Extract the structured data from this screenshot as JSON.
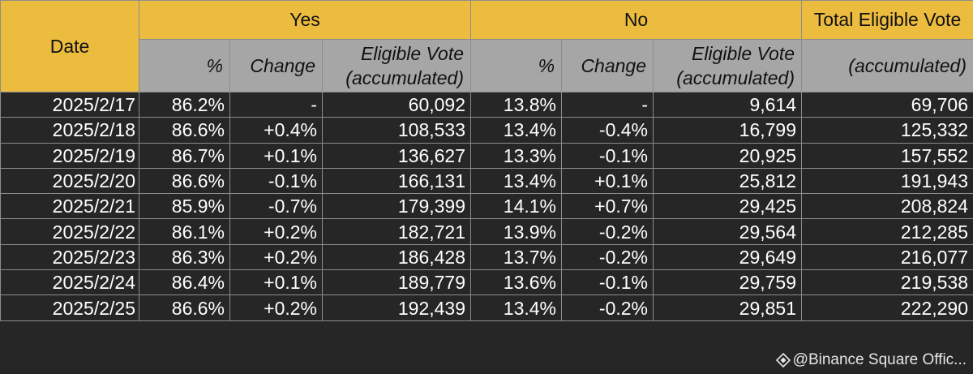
{
  "table": {
    "header": {
      "date": "Date",
      "groups": [
        "Yes",
        "No",
        "Total Eligible Vote"
      ],
      "columns": [
        "%",
        "Change",
        "Eligible Vote\n(accumulated)",
        "%",
        "Change",
        "Eligible Vote\n(accumulated)",
        "(accumulated)"
      ]
    },
    "rows": [
      [
        "2025/2/17",
        "86.2%",
        "-",
        "60,092",
        "13.8%",
        "-",
        "9,614",
        "69,706"
      ],
      [
        "2025/2/18",
        "86.6%",
        "+0.4%",
        "108,533",
        "13.4%",
        "-0.4%",
        "16,799",
        "125,332"
      ],
      [
        "2025/2/19",
        "86.7%",
        "+0.1%",
        "136,627",
        "13.3%",
        "-0.1%",
        "20,925",
        "157,552"
      ],
      [
        "2025/2/20",
        "86.6%",
        "-0.1%",
        "166,131",
        "13.4%",
        "+0.1%",
        "25,812",
        "191,943"
      ],
      [
        "2025/2/21",
        "85.9%",
        "-0.7%",
        "179,399",
        "14.1%",
        "+0.7%",
        "29,425",
        "208,824"
      ],
      [
        "2025/2/22",
        "86.1%",
        "+0.2%",
        "182,721",
        "13.9%",
        "-0.2%",
        "29,564",
        "212,285"
      ],
      [
        "2025/2/23",
        "86.3%",
        "+0.2%",
        "186,428",
        "13.7%",
        "-0.2%",
        "29,649",
        "216,077"
      ],
      [
        "2025/2/24",
        "86.4%",
        "+0.1%",
        "189,779",
        "13.6%",
        "-0.1%",
        "29,759",
        "219,538"
      ],
      [
        "2025/2/25",
        "86.6%",
        "+0.2%",
        "192,439",
        "13.4%",
        "-0.2%",
        "29,851",
        "222,290"
      ]
    ],
    "watermark": "@Binance Square Offic..."
  }
}
